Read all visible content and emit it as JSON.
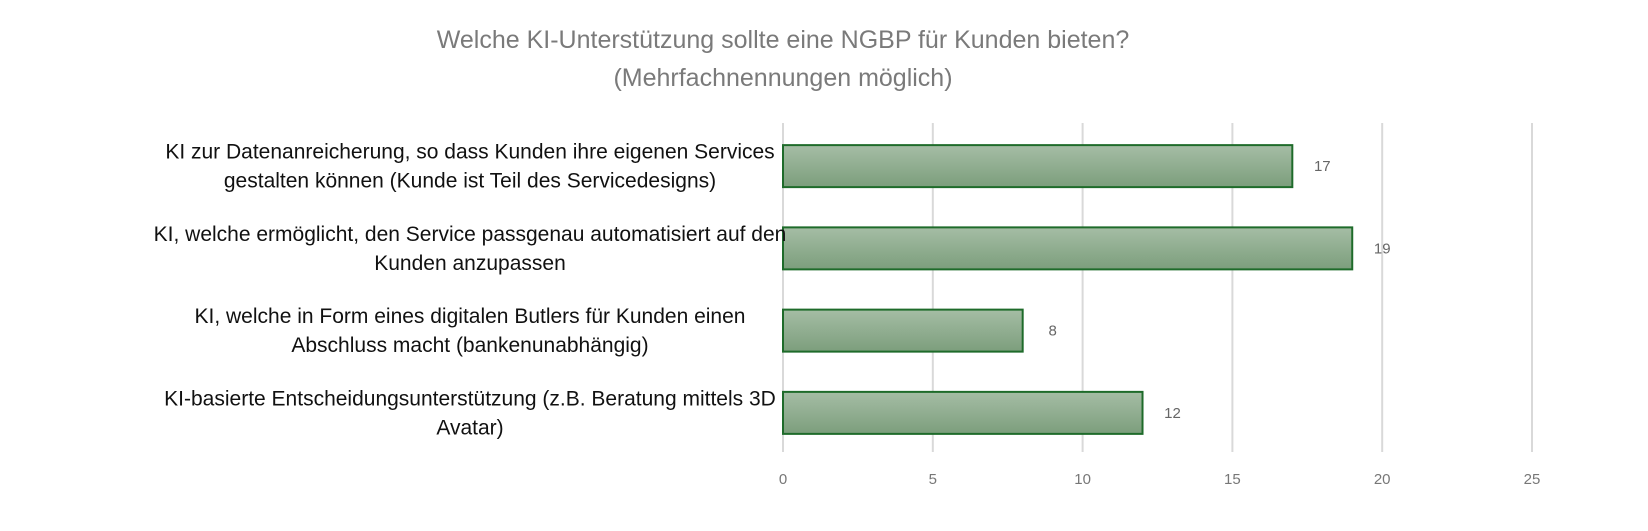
{
  "chart_data": {
    "type": "bar",
    "orientation": "horizontal",
    "title": [
      "Welche KI-Unterstützung sollte eine NGBP für Kunden bieten?",
      "(Mehrfachnennungen möglich)"
    ],
    "categories": [
      [
        "KI zur Datenanreicherung, so dass Kunden ihre eigenen Services",
        "gestalten können (Kunde ist Teil des Servicedesigns)"
      ],
      [
        "KI, welche ermöglicht, den Service passgenau automatisiert auf den",
        "Kunden anzupassen"
      ],
      [
        "KI, welche in Form eines digitalen Butlers für Kunden einen",
        "Abschluss macht (bankenunabhängig)"
      ],
      [
        "KI-basierte Entscheidungsunterstützung (z.B. Beratung mittels 3D",
        "Avatar)"
      ]
    ],
    "values": [
      17,
      19,
      8,
      12
    ],
    "xlim": [
      0,
      25
    ],
    "xticks": [
      0,
      5,
      10,
      15,
      20,
      25
    ],
    "grid": true,
    "legend": "none",
    "colors": {
      "bar_top": "#a5bda5",
      "bar_bottom": "#7c9e7c",
      "bar_border": "#1e6b2a",
      "grid": "#d9d9d9"
    }
  }
}
